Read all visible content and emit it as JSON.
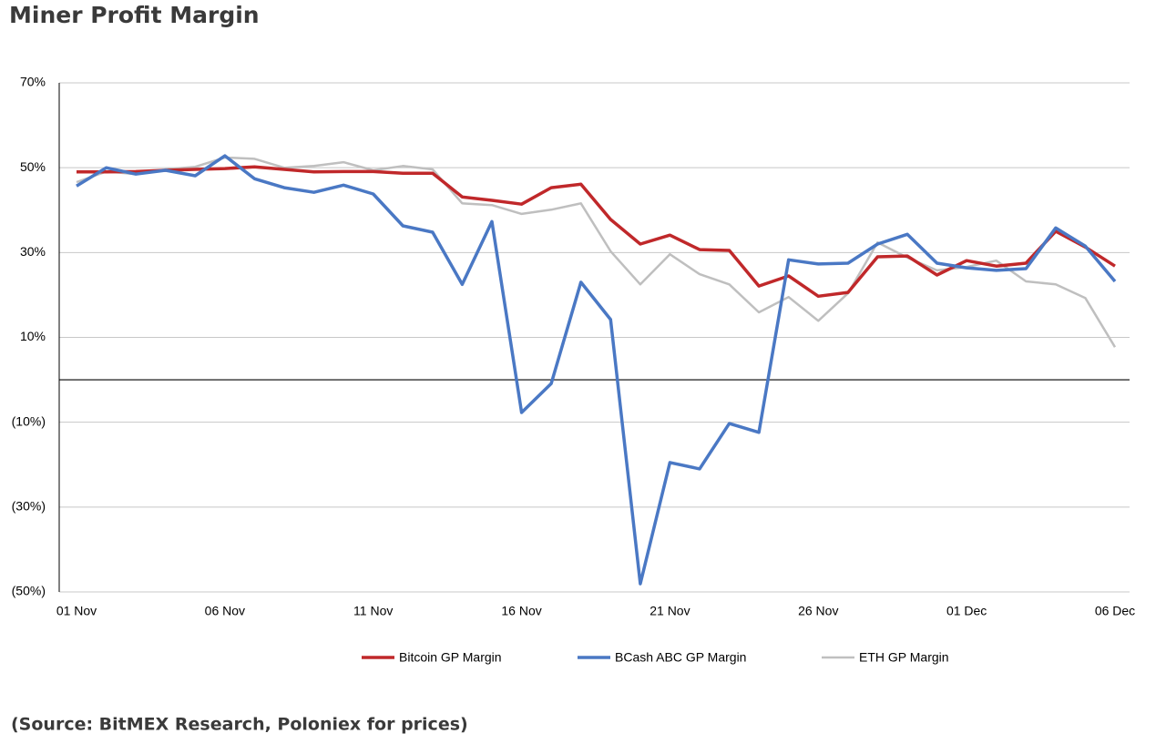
{
  "chart_data": {
    "type": "line",
    "title": "Miner Profit Margin",
    "source": "(Source: BitMEX Research, Poloniex for prices)",
    "categories": [
      "01 Nov",
      null,
      null,
      null,
      null,
      "06 Nov",
      null,
      null,
      null,
      null,
      "11 Nov",
      null,
      null,
      null,
      null,
      "16 Nov",
      null,
      null,
      null,
      null,
      "21 Nov",
      null,
      null,
      null,
      null,
      "26 Nov",
      null,
      null,
      null,
      null,
      "01 Dec",
      null,
      null,
      null,
      null,
      "06 Dec"
    ],
    "series": [
      {
        "name": "Bitcoin GP Margin",
        "color": "#c0282a",
        "width": 3.5,
        "values": [
          49,
          49,
          49.1,
          49.4,
          49.6,
          49.8,
          50.2,
          49.6,
          49,
          49.1,
          49.1,
          48.7,
          48.7,
          43.1,
          42.3,
          41.4,
          45.3,
          46.1,
          37.8,
          32,
          34.1,
          30.7,
          30.5,
          22.1,
          24.5,
          19.7,
          20.6,
          29,
          29.2,
          24.7,
          28.1,
          26.8,
          27.5,
          35,
          31.3,
          26.8
        ]
      },
      {
        "name": "BCash ABC GP Margin",
        "color": "#4a78c4",
        "width": 3.5,
        "values": [
          45.7,
          50,
          48.5,
          49.4,
          48.1,
          52.8,
          47.4,
          45.3,
          44.2,
          45.9,
          43.8,
          36.3,
          34.8,
          22.5,
          37.3,
          -7.7,
          -0.9,
          23,
          14.2,
          -48.1,
          -19.5,
          -21,
          -10.3,
          -12.4,
          28.3,
          27.3,
          27.5,
          32,
          34.3,
          27.5,
          26.4,
          25.8,
          26.2,
          35.8,
          31.5,
          23.2
        ]
      },
      {
        "name": "ETH GP Margin",
        "color": "#bfbfbf",
        "width": 2.5,
        "values": [
          46.6,
          49.1,
          48.5,
          49.6,
          50.2,
          52.4,
          52.1,
          50,
          50.4,
          51.3,
          49.4,
          50.4,
          49.6,
          41.6,
          41.2,
          39.1,
          40.1,
          41.6,
          30.3,
          22.5,
          29.6,
          24.9,
          22.5,
          15.9,
          19.5,
          13.9,
          20.4,
          32.4,
          28.8,
          25.8,
          26.6,
          28.1,
          23.2,
          22.5,
          19.3,
          7.7
        ]
      }
    ],
    "ylim": [
      -50,
      70
    ],
    "yticks": [
      {
        "value": 70,
        "label": "70%"
      },
      {
        "value": 50,
        "label": "50%"
      },
      {
        "value": 30,
        "label": "30%"
      },
      {
        "value": 10,
        "label": "10%"
      },
      {
        "value": -10,
        "label": "(10%)"
      },
      {
        "value": -30,
        "label": "(30%)"
      },
      {
        "value": -50,
        "label": "(50%)"
      }
    ],
    "grid": true,
    "legend": "bottom"
  }
}
